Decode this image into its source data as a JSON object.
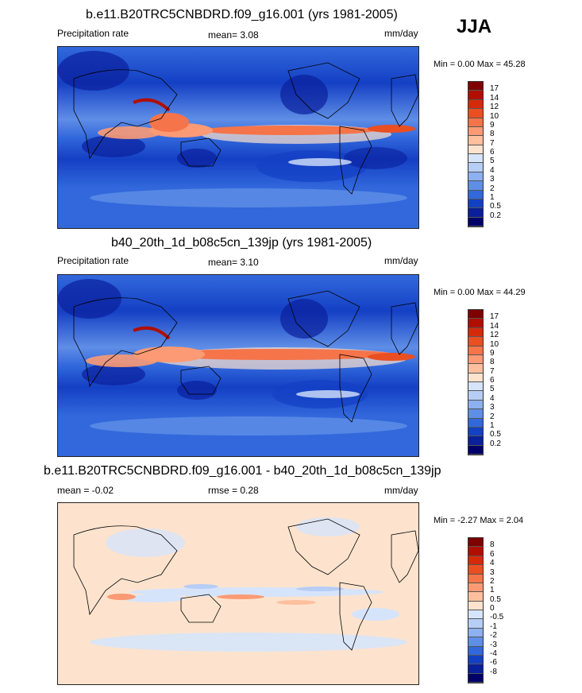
{
  "season": "JJA",
  "panels": [
    {
      "title": "b.e11.B20TRC5CNBDRD.f09_g16.001 (yrs 1981-2005)",
      "left_label": "Precipitation rate",
      "center_label": "mean=   3.08",
      "right_label": "mm/day",
      "minmax": "Min =   0.00 Max =  45.28",
      "colorbar_labels": [
        "17",
        "14",
        "12",
        "10",
        "9",
        "8",
        "7",
        "6",
        "5",
        "4",
        "3",
        "2",
        "1",
        "0.5",
        "0.2"
      ],
      "colorbar_colors": [
        "#7f0000",
        "#b00f00",
        "#d52a0a",
        "#ea4f22",
        "#f5744a",
        "#fb9a74",
        "#fdbf9e",
        "#fde3cd",
        "#d6e4fb",
        "#b6cdf6",
        "#8cb0f0",
        "#5f8ee6",
        "#3268dc",
        "#1440c4",
        "#0a1f9c",
        "#00006b"
      ]
    },
    {
      "title": "b40_20th_1d_b08c5cn_139jp (yrs 1981-2005)",
      "left_label": "Precipitation rate",
      "center_label": "mean=   3.10",
      "right_label": "mm/day",
      "minmax": "Min =   0.00 Max =  44.29",
      "colorbar_labels": [
        "17",
        "14",
        "12",
        "10",
        "9",
        "8",
        "7",
        "6",
        "5",
        "4",
        "3",
        "2",
        "1",
        "0.5",
        "0.2"
      ],
      "colorbar_colors": [
        "#7f0000",
        "#b00f00",
        "#d52a0a",
        "#ea4f22",
        "#f5744a",
        "#fb9a74",
        "#fdbf9e",
        "#fde3cd",
        "#d6e4fb",
        "#b6cdf6",
        "#8cb0f0",
        "#5f8ee6",
        "#3268dc",
        "#1440c4",
        "#0a1f9c",
        "#00006b"
      ]
    },
    {
      "title": "b.e11.B20TRC5CNBDRD.f09_g16.001 - b40_20th_1d_b08c5cn_139jp",
      "left_label": "mean =  -0.02",
      "center_label": "rmse =   0.28",
      "right_label": "mm/day",
      "minmax": "Min =  -2.27 Max =   2.04",
      "colorbar_labels": [
        "8",
        "6",
        "4",
        "3",
        "2",
        "1",
        "0.5",
        "0",
        "-0.5",
        "-1",
        "-2",
        "-3",
        "-4",
        "-6",
        "-8"
      ],
      "colorbar_colors": [
        "#7f0000",
        "#b00f00",
        "#d52a0a",
        "#ea4f22",
        "#f5744a",
        "#fb9a74",
        "#fdbf9e",
        "#fde3cd",
        "#d6e4fb",
        "#b6cdf6",
        "#8cb0f0",
        "#5f8ee6",
        "#3268dc",
        "#1440c4",
        "#0a1f9c",
        "#00006b"
      ]
    }
  ]
}
